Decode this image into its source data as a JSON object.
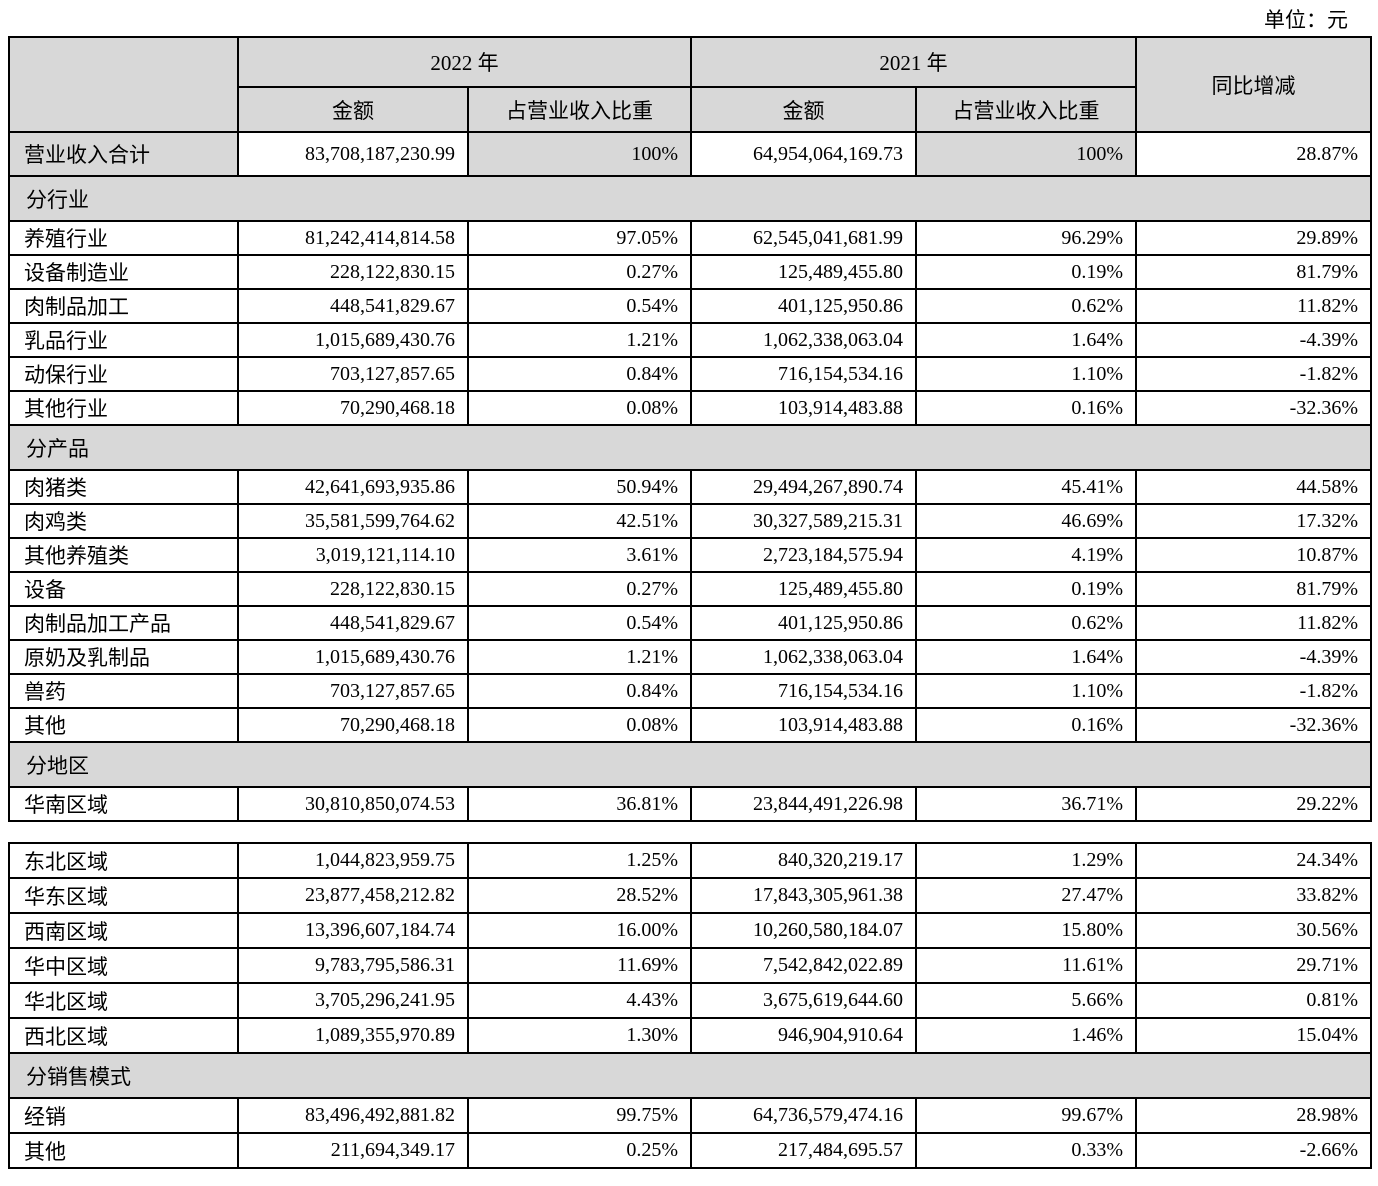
{
  "unit_label": "单位：元",
  "colors": {
    "header_fill": "#d8d8d8",
    "border": "#000000"
  },
  "table1": {
    "headers": {
      "y2022": "2022 年",
      "y2021": "2021 年",
      "yoy": "同比增减",
      "amount": "金额",
      "share": "占营业收入比重"
    },
    "rows": [
      {
        "type": "total",
        "label": "营业收入合计",
        "a2022": "83,708,187,230.99",
        "s2022": "100%",
        "a2021": "64,954,064,169.73",
        "s2021": "100%",
        "yoy": "28.87%"
      },
      {
        "type": "section",
        "label": "分行业"
      },
      {
        "type": "data",
        "label": "养殖行业",
        "a2022": "81,242,414,814.58",
        "s2022": "97.05%",
        "a2021": "62,545,041,681.99",
        "s2021": "96.29%",
        "yoy": "29.89%"
      },
      {
        "type": "data",
        "label": "设备制造业",
        "a2022": "228,122,830.15",
        "s2022": "0.27%",
        "a2021": "125,489,455.80",
        "s2021": "0.19%",
        "yoy": "81.79%"
      },
      {
        "type": "data",
        "label": "肉制品加工",
        "a2022": "448,541,829.67",
        "s2022": "0.54%",
        "a2021": "401,125,950.86",
        "s2021": "0.62%",
        "yoy": "11.82%"
      },
      {
        "type": "data",
        "label": "乳品行业",
        "a2022": "1,015,689,430.76",
        "s2022": "1.21%",
        "a2021": "1,062,338,063.04",
        "s2021": "1.64%",
        "yoy": "-4.39%"
      },
      {
        "type": "data",
        "label": "动保行业",
        "a2022": "703,127,857.65",
        "s2022": "0.84%",
        "a2021": "716,154,534.16",
        "s2021": "1.10%",
        "yoy": "-1.82%"
      },
      {
        "type": "data",
        "label": "其他行业",
        "a2022": "70,290,468.18",
        "s2022": "0.08%",
        "a2021": "103,914,483.88",
        "s2021": "0.16%",
        "yoy": "-32.36%"
      },
      {
        "type": "section",
        "label": "分产品"
      },
      {
        "type": "data",
        "label": "肉猪类",
        "a2022": "42,641,693,935.86",
        "s2022": "50.94%",
        "a2021": "29,494,267,890.74",
        "s2021": "45.41%",
        "yoy": "44.58%"
      },
      {
        "type": "data",
        "label": "肉鸡类",
        "a2022": "35,581,599,764.62",
        "s2022": "42.51%",
        "a2021": "30,327,589,215.31",
        "s2021": "46.69%",
        "yoy": "17.32%"
      },
      {
        "type": "data",
        "label": "其他养殖类",
        "a2022": "3,019,121,114.10",
        "s2022": "3.61%",
        "a2021": "2,723,184,575.94",
        "s2021": "4.19%",
        "yoy": "10.87%"
      },
      {
        "type": "data",
        "label": "设备",
        "a2022": "228,122,830.15",
        "s2022": "0.27%",
        "a2021": "125,489,455.80",
        "s2021": "0.19%",
        "yoy": "81.79%"
      },
      {
        "type": "data",
        "label": "肉制品加工产品",
        "a2022": "448,541,829.67",
        "s2022": "0.54%",
        "a2021": "401,125,950.86",
        "s2021": "0.62%",
        "yoy": "11.82%"
      },
      {
        "type": "data",
        "label": "原奶及乳制品",
        "a2022": "1,015,689,430.76",
        "s2022": "1.21%",
        "a2021": "1,062,338,063.04",
        "s2021": "1.64%",
        "yoy": "-4.39%"
      },
      {
        "type": "data",
        "label": "兽药",
        "a2022": "703,127,857.65",
        "s2022": "0.84%",
        "a2021": "716,154,534.16",
        "s2021": "1.10%",
        "yoy": "-1.82%"
      },
      {
        "type": "data",
        "label": "其他",
        "a2022": "70,290,468.18",
        "s2022": "0.08%",
        "a2021": "103,914,483.88",
        "s2021": "0.16%",
        "yoy": "-32.36%"
      },
      {
        "type": "section",
        "label": "分地区"
      },
      {
        "type": "data",
        "label": "华南区域",
        "a2022": "30,810,850,074.53",
        "s2022": "36.81%",
        "a2021": "23,844,491,226.98",
        "s2021": "36.71%",
        "yoy": "29.22%"
      }
    ]
  },
  "table2": {
    "rows": [
      {
        "type": "data",
        "label": "东北区域",
        "a2022": "1,044,823,959.75",
        "s2022": "1.25%",
        "a2021": "840,320,219.17",
        "s2021": "1.29%",
        "yoy": "24.34%"
      },
      {
        "type": "data",
        "label": "华东区域",
        "a2022": "23,877,458,212.82",
        "s2022": "28.52%",
        "a2021": "17,843,305,961.38",
        "s2021": "27.47%",
        "yoy": "33.82%"
      },
      {
        "type": "data",
        "label": "西南区域",
        "a2022": "13,396,607,184.74",
        "s2022": "16.00%",
        "a2021": "10,260,580,184.07",
        "s2021": "15.80%",
        "yoy": "30.56%"
      },
      {
        "type": "data",
        "label": "华中区域",
        "a2022": "9,783,795,586.31",
        "s2022": "11.69%",
        "a2021": "7,542,842,022.89",
        "s2021": "11.61%",
        "yoy": "29.71%"
      },
      {
        "type": "data",
        "label": "华北区域",
        "a2022": "3,705,296,241.95",
        "s2022": "4.43%",
        "a2021": "3,675,619,644.60",
        "s2021": "5.66%",
        "yoy": "0.81%"
      },
      {
        "type": "data",
        "label": "西北区域",
        "a2022": "1,089,355,970.89",
        "s2022": "1.30%",
        "a2021": "946,904,910.64",
        "s2021": "1.46%",
        "yoy": "15.04%"
      },
      {
        "type": "section",
        "label": "分销售模式"
      },
      {
        "type": "data",
        "tall": true,
        "label": "经销",
        "a2022": "83,496,492,881.82",
        "s2022": "99.75%",
        "a2021": "64,736,579,474.16",
        "s2021": "99.67%",
        "yoy": "28.98%"
      },
      {
        "type": "data",
        "tall": true,
        "label": "其他",
        "a2022": "211,694,349.17",
        "s2022": "0.25%",
        "a2021": "217,484,695.57",
        "s2021": "0.33%",
        "yoy": "-2.66%"
      }
    ]
  }
}
